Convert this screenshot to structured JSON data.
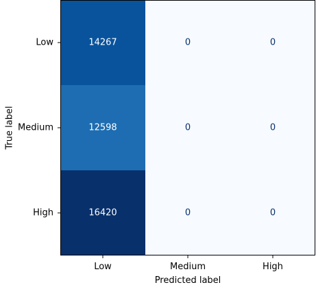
{
  "chart_data": {
    "type": "heatmap",
    "xlabel": "Predicted label",
    "ylabel": "True label",
    "x_categories": [
      "Low",
      "Medium",
      "High"
    ],
    "y_categories": [
      "Low",
      "Medium",
      "High"
    ],
    "values": [
      [
        14267,
        0,
        0
      ],
      [
        12598,
        0,
        0
      ],
      [
        16420,
        0,
        0
      ]
    ],
    "colormap": "Blues",
    "colormap_stops": [
      "#f7fbff",
      "#deebf7",
      "#c6dbef",
      "#9ecae1",
      "#6baed6",
      "#4292c6",
      "#2171b5",
      "#08519c",
      "#08306b"
    ],
    "text_color_dark": "#08306b",
    "text_color_light": "#ffffff",
    "grid": false,
    "colorbar": false
  }
}
